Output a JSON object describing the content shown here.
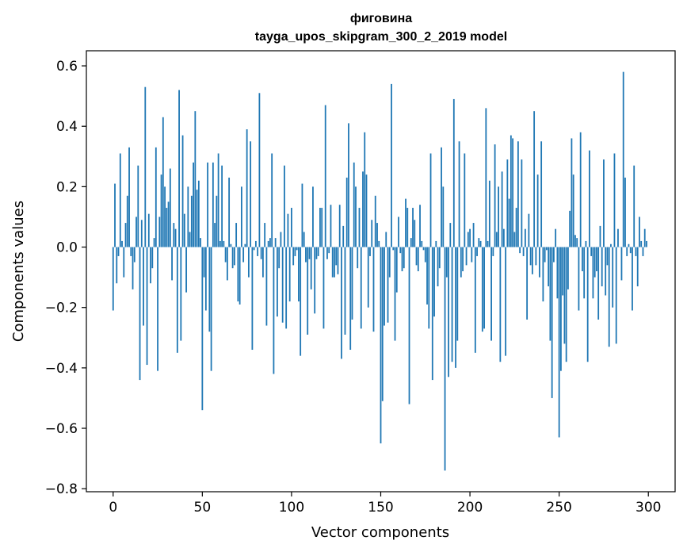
{
  "chart_data": {
    "type": "bar",
    "title": "фиговина",
    "subtitle": "tayga_upos_skipgram_300_2_2019 model",
    "xlabel": "Vector components",
    "ylabel": "Components values",
    "xlim": [
      -15,
      315
    ],
    "ylim": [
      -0.81,
      0.65
    ],
    "x_ticks": [
      0,
      50,
      100,
      150,
      200,
      250,
      300
    ],
    "x_tick_labels": [
      "0",
      "50",
      "100",
      "150",
      "200",
      "250",
      "300"
    ],
    "y_ticks": [
      0.6,
      0.4,
      0.2,
      0.0,
      -0.2,
      -0.4,
      -0.6,
      -0.8
    ],
    "y_tick_labels": [
      "0.6",
      "0.4",
      "0.2",
      "0.0",
      "−0.2",
      "−0.4",
      "−0.6",
      "−0.8"
    ],
    "grid": false,
    "bar_color": "#1f77b4",
    "x": "indices 0..299",
    "values": [
      -0.21,
      0.21,
      -0.12,
      -0.03,
      0.31,
      0.02,
      -0.1,
      0.08,
      0.17,
      0.33,
      -0.03,
      -0.14,
      -0.05,
      0.1,
      0.27,
      -0.44,
      0.09,
      -0.26,
      0.53,
      -0.39,
      0.11,
      -0.12,
      -0.07,
      0.03,
      0.33,
      -0.41,
      0.1,
      0.24,
      0.43,
      0.2,
      0.13,
      0.15,
      0.26,
      -0.11,
      0.08,
      0.06,
      -0.35,
      0.52,
      -0.31,
      0.37,
      0.11,
      -0.15,
      0.2,
      0.05,
      0.17,
      0.28,
      0.45,
      0.19,
      0.22,
      0.03,
      -0.54,
      -0.1,
      -0.21,
      0.28,
      -0.28,
      -0.41,
      0.28,
      0.08,
      0.17,
      0.31,
      0.02,
      0.27,
      0.02,
      -0.05,
      -0.11,
      0.23,
      0.01,
      -0.07,
      -0.06,
      0.08,
      -0.18,
      -0.19,
      0.2,
      -0.05,
      0.01,
      0.39,
      -0.1,
      0.35,
      -0.34,
      -0.01,
      0.02,
      -0.03,
      0.51,
      -0.04,
      -0.1,
      0.08,
      -0.26,
      0.02,
      0.03,
      0.31,
      -0.42,
      0.03,
      -0.23,
      -0.07,
      0.05,
      -0.25,
      0.27,
      -0.27,
      0.11,
      -0.18,
      0.13,
      -0.06,
      -0.03,
      -0.01,
      -0.18,
      -0.36,
      0.21,
      0.05,
      -0.05,
      -0.29,
      -0.04,
      -0.14,
      0.2,
      -0.22,
      -0.04,
      -0.03,
      0.13,
      0.13,
      -0.27,
      0.47,
      -0.04,
      -0.02,
      0.14,
      -0.1,
      -0.1,
      -0.06,
      -0.09,
      0.14,
      -0.37,
      0.07,
      -0.29,
      0.23,
      0.41,
      -0.34,
      -0.24,
      0.28,
      0.2,
      -0.07,
      0.13,
      -0.27,
      0.25,
      0.38,
      0.24,
      -0.2,
      -0.03,
      0.09,
      -0.28,
      0.17,
      0.08,
      0.02,
      -0.65,
      -0.51,
      -0.26,
      0.05,
      -0.25,
      -0.1,
      0.54,
      -0.01,
      -0.31,
      -0.15,
      0.1,
      -0.02,
      -0.08,
      -0.07,
      0.16,
      0.13,
      -0.52,
      0.03,
      0.13,
      0.09,
      -0.06,
      -0.08,
      0.14,
      0.02,
      -0.01,
      -0.05,
      -0.19,
      -0.27,
      0.31,
      -0.44,
      -0.23,
      0.02,
      -0.13,
      -0.07,
      0.33,
      0.2,
      -0.74,
      -0.1,
      -0.43,
      0.08,
      -0.38,
      0.49,
      -0.4,
      -0.31,
      0.35,
      -0.1,
      -0.08,
      0.31,
      -0.06,
      0.05,
      0.06,
      -0.05,
      0.08,
      -0.35,
      -0.03,
      0.03,
      0.02,
      -0.28,
      -0.27,
      0.46,
      0.02,
      0.22,
      -0.31,
      -0.03,
      0.34,
      0.05,
      0.2,
      -0.38,
      0.25,
      0.06,
      -0.36,
      0.29,
      0.16,
      0.37,
      0.36,
      0.05,
      0.13,
      0.35,
      -0.02,
      0.29,
      -0.03,
      0.06,
      -0.24,
      0.11,
      -0.06,
      -0.09,
      0.45,
      -0.06,
      0.24,
      -0.1,
      0.35,
      -0.18,
      -0.05,
      -0.01,
      -0.13,
      -0.31,
      -0.5,
      -0.05,
      0.06,
      -0.17,
      -0.63,
      -0.41,
      -0.16,
      -0.32,
      -0.38,
      -0.14,
      0.12,
      0.36,
      0.24,
      0.04,
      0.03,
      -0.21,
      0.38,
      -0.08,
      -0.17,
      0.02,
      -0.38,
      0.32,
      -0.03,
      -0.17,
      -0.1,
      -0.08,
      -0.24,
      0.07,
      -0.13,
      0.29,
      -0.16,
      -0.06,
      -0.33,
      0.01,
      -0.2,
      0.31,
      -0.32,
      0.06,
      0.0,
      -0.11,
      0.58,
      0.23,
      -0.03,
      0.01,
      -0.02,
      -0.21,
      0.27,
      -0.03,
      -0.13,
      0.1,
      0.02,
      -0.03,
      0.06,
      0.02
    ]
  }
}
